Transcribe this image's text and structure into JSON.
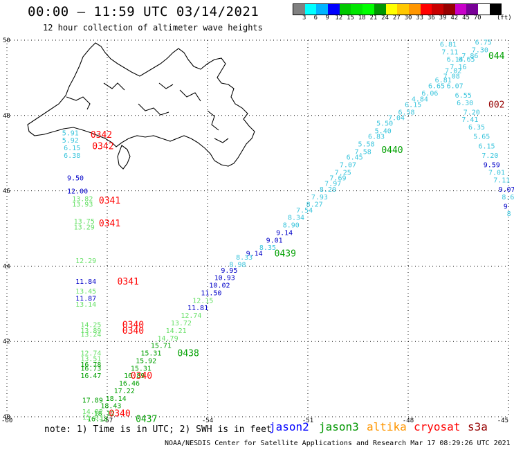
{
  "header": {
    "title": "00:00 – 11:59 UTC 03/14/2021",
    "subtitle": "12 hour collection of altimeter wave heights"
  },
  "legend": {
    "colors": [
      "#808080",
      "#00ffff",
      "#00b4ff",
      "#0000ff",
      "#00c800",
      "#00e600",
      "#00ff00",
      "#009600",
      "#ffff00",
      "#ffc800",
      "#ff9600",
      "#ff0000",
      "#c80000",
      "#960000",
      "#c800c8",
      "#780096",
      "#ffffff",
      "#000000"
    ],
    "labels": [
      "3",
      "6",
      "9",
      "12",
      "15",
      "18",
      "21",
      "24",
      "27",
      "30",
      "33",
      "36",
      "39",
      "42",
      "45",
      "70"
    ],
    "unit": "(ft)"
  },
  "map": {
    "lon_range": [
      -60,
      -45
    ],
    "lat_range": [
      40,
      50
    ],
    "lon_ticks": [
      {
        "value": -60,
        "label": "-60"
      },
      {
        "value": -57,
        "label": "-57"
      },
      {
        "value": -54,
        "label": "-54"
      },
      {
        "value": -51,
        "label": "-51"
      },
      {
        "value": -48,
        "label": "-48"
      },
      {
        "value": -45,
        "label": "-45"
      }
    ],
    "lat_ticks": [
      {
        "value": 40,
        "label": "40"
      },
      {
        "value": 42,
        "label": "42"
      },
      {
        "value": 44,
        "label": "44"
      },
      {
        "value": 46,
        "label": "46"
      },
      {
        "value": 48,
        "label": "48"
      },
      {
        "value": 50,
        "label": "50"
      }
    ],
    "grid": "dotted"
  },
  "colors": {
    "cyan": "#38c4dc",
    "blue": "#0000c8",
    "green": "#00a000",
    "lightgreen": "#66e066",
    "red": "#ff0000",
    "darkred": "#960000",
    "jason2": "#0000ff",
    "jason3": "#009600",
    "altika": "#ff9600",
    "cryosat": "#ff0000",
    "s3a": "#960000"
  },
  "observations": [
    {
      "text": "6.81",
      "lon": -47.05,
      "lat": 49.9,
      "color": "cyan"
    },
    {
      "text": "6.75",
      "lon": -46.0,
      "lat": 49.95,
      "color": "cyan"
    },
    {
      "text": "7.11",
      "lon": -47.0,
      "lat": 49.7,
      "color": "cyan"
    },
    {
      "text": "7.30",
      "lon": -46.1,
      "lat": 49.75,
      "color": "cyan"
    },
    {
      "text": "7.86",
      "lon": -46.4,
      "lat": 49.6,
      "color": "cyan"
    },
    {
      "text": "6.14",
      "lon": -46.85,
      "lat": 49.5,
      "color": "cyan"
    },
    {
      "text": "6.65",
      "lon": -46.5,
      "lat": 49.5,
      "color": "cyan"
    },
    {
      "text": "7.16",
      "lon": -46.75,
      "lat": 49.3,
      "color": "cyan"
    },
    {
      "text": "7.02",
      "lon": -46.9,
      "lat": 49.2,
      "color": "cyan"
    },
    {
      "text": "7.08",
      "lon": -46.95,
      "lat": 49.05,
      "color": "cyan"
    },
    {
      "text": "6.81",
      "lon": -47.2,
      "lat": 48.95,
      "color": "cyan"
    },
    {
      "text": "6.65",
      "lon": -47.4,
      "lat": 48.8,
      "color": "cyan"
    },
    {
      "text": "6.07",
      "lon": -46.85,
      "lat": 48.8,
      "color": "cyan"
    },
    {
      "text": "6.06",
      "lon": -47.6,
      "lat": 48.6,
      "color": "cyan"
    },
    {
      "text": "6.55",
      "lon": -46.6,
      "lat": 48.55,
      "color": "cyan"
    },
    {
      "text": "4.84",
      "lon": -47.9,
      "lat": 48.45,
      "color": "cyan"
    },
    {
      "text": "6.30",
      "lon": -46.55,
      "lat": 48.35,
      "color": "cyan"
    },
    {
      "text": "6.15",
      "lon": -48.1,
      "lat": 48.3,
      "color": "cyan"
    },
    {
      "text": "6.58",
      "lon": -48.3,
      "lat": 48.1,
      "color": "cyan"
    },
    {
      "text": "7.20",
      "lon": -46.35,
      "lat": 48.1,
      "color": "cyan"
    },
    {
      "text": "7.04",
      "lon": -48.6,
      "lat": 47.95,
      "color": "cyan"
    },
    {
      "text": "7.41",
      "lon": -46.4,
      "lat": 47.9,
      "color": "cyan"
    },
    {
      "text": "5.50",
      "lon": -48.95,
      "lat": 47.8,
      "color": "cyan"
    },
    {
      "text": "6.35",
      "lon": -46.2,
      "lat": 47.7,
      "color": "cyan"
    },
    {
      "text": "5.40",
      "lon": -49.0,
      "lat": 47.6,
      "color": "cyan"
    },
    {
      "text": "5.65",
      "lon": -46.05,
      "lat": 47.45,
      "color": "cyan"
    },
    {
      "text": "6.83",
      "lon": -49.2,
      "lat": 47.45,
      "color": "cyan"
    },
    {
      "text": "5.58",
      "lon": -49.5,
      "lat": 47.25,
      "color": "cyan"
    },
    {
      "text": "6.15",
      "lon": -45.9,
      "lat": 47.2,
      "color": "cyan"
    },
    {
      "text": "7.58",
      "lon": -49.6,
      "lat": 47.05,
      "color": "cyan"
    },
    {
      "text": "6.45",
      "lon": -49.85,
      "lat": 46.9,
      "color": "cyan"
    },
    {
      "text": "7.20",
      "lon": -45.8,
      "lat": 46.95,
      "color": "cyan"
    },
    {
      "text": "7.07",
      "lon": -50.05,
      "lat": 46.7,
      "color": "cyan"
    },
    {
      "text": "9.59",
      "lon": -45.75,
      "lat": 46.7,
      "color": "blue"
    },
    {
      "text": "7.25",
      "lon": -50.2,
      "lat": 46.5,
      "color": "cyan"
    },
    {
      "text": "7.01",
      "lon": -45.6,
      "lat": 46.5,
      "color": "cyan"
    },
    {
      "text": "7.69",
      "lon": -50.35,
      "lat": 46.35,
      "color": "cyan"
    },
    {
      "text": "7.11",
      "lon": -45.45,
      "lat": 46.3,
      "color": "cyan"
    },
    {
      "text": "7.97",
      "lon": -50.5,
      "lat": 46.2,
      "color": "cyan"
    },
    {
      "text": "9.07",
      "lon": -45.3,
      "lat": 46.05,
      "color": "blue"
    },
    {
      "text": "8.20",
      "lon": -50.65,
      "lat": 46.05,
      "color": "cyan"
    },
    {
      "text": "7.93",
      "lon": -50.9,
      "lat": 45.85,
      "color": "cyan"
    },
    {
      "text": "8.6",
      "lon": -45.2,
      "lat": 45.85,
      "color": "cyan"
    },
    {
      "text": "8.27",
      "lon": -51.05,
      "lat": 45.65,
      "color": "cyan"
    },
    {
      "text": "9",
      "lon": -45.15,
      "lat": 45.6,
      "color": "blue"
    },
    {
      "text": "7.54",
      "lon": -51.35,
      "lat": 45.5,
      "color": "cyan"
    },
    {
      "text": "8",
      "lon": -45.05,
      "lat": 45.4,
      "color": "cyan"
    },
    {
      "text": "8.34",
      "lon": -51.6,
      "lat": 45.3,
      "color": "cyan"
    },
    {
      "text": "8.90",
      "lon": -51.75,
      "lat": 45.1,
      "color": "cyan"
    },
    {
      "text": "9.14",
      "lon": -51.95,
      "lat": 44.9,
      "color": "blue"
    },
    {
      "text": "9.01",
      "lon": -52.25,
      "lat": 44.7,
      "color": "blue"
    },
    {
      "text": "8.35",
      "lon": -52.45,
      "lat": 44.5,
      "color": "cyan"
    },
    {
      "text": "9.14",
      "lon": -52.85,
      "lat": 44.35,
      "color": "blue"
    },
    {
      "text": "8.33",
      "lon": -53.15,
      "lat": 44.25,
      "color": "cyan"
    },
    {
      "text": "8.98",
      "lon": -53.35,
      "lat": 44.05,
      "color": "cyan"
    },
    {
      "text": "9.95",
      "lon": -53.6,
      "lat": 43.9,
      "color": "blue"
    },
    {
      "text": "10.93",
      "lon": -53.8,
      "lat": 43.7,
      "color": "blue"
    },
    {
      "text": "10.02",
      "lon": -53.95,
      "lat": 43.5,
      "color": "blue"
    },
    {
      "text": "11.50",
      "lon": -54.2,
      "lat": 43.3,
      "color": "blue"
    },
    {
      "text": "12.15",
      "lon": -54.45,
      "lat": 43.1,
      "color": "lightgreen"
    },
    {
      "text": "11.81",
      "lon": -54.6,
      "lat": 42.9,
      "color": "blue"
    },
    {
      "text": "12.74",
      "lon": -54.8,
      "lat": 42.7,
      "color": "lightgreen"
    },
    {
      "text": "13.72",
      "lon": -55.1,
      "lat": 42.5,
      "color": "lightgreen"
    },
    {
      "text": "14.21",
      "lon": -55.25,
      "lat": 42.3,
      "color": "lightgreen"
    },
    {
      "text": "14.79",
      "lon": -55.5,
      "lat": 42.1,
      "color": "lightgreen"
    },
    {
      "text": "15.71",
      "lon": -55.7,
      "lat": 41.9,
      "color": "green"
    },
    {
      "text": "15.31",
      "lon": -56.0,
      "lat": 41.7,
      "color": "green"
    },
    {
      "text": "15.92",
      "lon": -56.15,
      "lat": 41.5,
      "color": "green"
    },
    {
      "text": "15.31",
      "lon": -56.3,
      "lat": 41.3,
      "color": "green"
    },
    {
      "text": "16.89",
      "lon": -56.5,
      "lat": 41.1,
      "color": "green"
    },
    {
      "text": "16.46",
      "lon": -56.65,
      "lat": 40.9,
      "color": "green"
    },
    {
      "text": "17.22",
      "lon": -56.8,
      "lat": 40.7,
      "color": "green"
    },
    {
      "text": "18.14",
      "lon": -57.05,
      "lat": 40.5,
      "color": "green"
    },
    {
      "text": "18.43",
      "lon": -57.2,
      "lat": 40.3,
      "color": "green"
    },
    {
      "text": "18.12",
      "lon": -57.4,
      "lat": 40.1,
      "color": "green"
    },
    {
      "text": "16.18",
      "lon": -57.6,
      "lat": 39.95,
      "color": "green"
    },
    {
      "text": "5.91",
      "lon": -58.35,
      "lat": 47.55,
      "color": "cyan"
    },
    {
      "text": "5.92",
      "lon": -58.35,
      "lat": 47.35,
      "color": "cyan"
    },
    {
      "text": "6.15",
      "lon": -58.3,
      "lat": 47.15,
      "color": "cyan"
    },
    {
      "text": "6.38",
      "lon": -58.3,
      "lat": 46.95,
      "color": "cyan"
    },
    {
      "text": "9.50",
      "lon": -58.2,
      "lat": 46.35,
      "color": "blue"
    },
    {
      "text": "12.00",
      "lon": -58.2,
      "lat": 46.0,
      "color": "blue"
    },
    {
      "text": "13.82",
      "lon": -58.05,
      "lat": 45.8,
      "color": "lightgreen"
    },
    {
      "text": "13.93",
      "lon": -58.05,
      "lat": 45.65,
      "color": "lightgreen"
    },
    {
      "text": "13.75",
      "lon": -58.0,
      "lat": 45.2,
      "color": "lightgreen"
    },
    {
      "text": "13.29",
      "lon": -58.0,
      "lat": 45.05,
      "color": "lightgreen"
    },
    {
      "text": "12.29",
      "lon": -57.95,
      "lat": 44.15,
      "color": "lightgreen"
    },
    {
      "text": "11.84",
      "lon": -57.95,
      "lat": 43.6,
      "color": "blue"
    },
    {
      "text": "13.45",
      "lon": -57.95,
      "lat": 43.35,
      "color": "lightgreen"
    },
    {
      "text": "11.87",
      "lon": -57.95,
      "lat": 43.15,
      "color": "blue"
    },
    {
      "text": "13.14",
      "lon": -57.95,
      "lat": 43.0,
      "color": "lightgreen"
    },
    {
      "text": "14.25",
      "lon": -57.8,
      "lat": 42.45,
      "color": "lightgreen"
    },
    {
      "text": "13.89",
      "lon": -57.8,
      "lat": 42.3,
      "color": "lightgreen"
    },
    {
      "text": "13.24",
      "lon": -57.8,
      "lat": 42.2,
      "color": "lightgreen"
    },
    {
      "text": "12.74",
      "lon": -57.8,
      "lat": 41.7,
      "color": "lightgreen"
    },
    {
      "text": "13.51",
      "lon": -57.8,
      "lat": 41.55,
      "color": "lightgreen"
    },
    {
      "text": "16.78",
      "lon": -57.8,
      "lat": 41.4,
      "color": "green"
    },
    {
      "text": "16.73",
      "lon": -57.8,
      "lat": 41.3,
      "color": "green"
    },
    {
      "text": "16.47",
      "lon": -57.8,
      "lat": 41.1,
      "color": "green"
    },
    {
      "text": "17.89",
      "lon": -57.75,
      "lat": 40.45,
      "color": "green"
    },
    {
      "text": "14.82",
      "lon": -57.75,
      "lat": 40.15,
      "color": "lightgreen"
    },
    {
      "text": "15.03",
      "lon": -57.75,
      "lat": 40.0,
      "color": "lightgreen"
    }
  ],
  "pass_labels": [
    {
      "text": "044",
      "lon": -45.6,
      "lat": 49.6,
      "color": "green"
    },
    {
      "text": "002",
      "lon": -45.6,
      "lat": 48.3,
      "color": "darkred"
    },
    {
      "text": "0440",
      "lon": -48.8,
      "lat": 47.1,
      "color": "green"
    },
    {
      "text": "0439",
      "lon": -52.0,
      "lat": 44.35,
      "color": "green"
    },
    {
      "text": "0438",
      "lon": -54.9,
      "lat": 41.7,
      "color": "green"
    },
    {
      "text": "0437",
      "lon": -56.15,
      "lat": 39.95,
      "color": "green"
    },
    {
      "text": "0342",
      "lon": -57.5,
      "lat": 47.5,
      "color": "red"
    },
    {
      "text": "0342",
      "lon": -57.45,
      "lat": 47.2,
      "color": "red"
    },
    {
      "text": "0341",
      "lon": -57.25,
      "lat": 45.75,
      "color": "red"
    },
    {
      "text": "0341",
      "lon": -57.25,
      "lat": 45.15,
      "color": "red"
    },
    {
      "text": "0341",
      "lon": -56.7,
      "lat": 43.6,
      "color": "red"
    },
    {
      "text": "0340",
      "lon": -56.55,
      "lat": 42.45,
      "color": "red"
    },
    {
      "text": "0340",
      "lon": -56.55,
      "lat": 42.3,
      "color": "red"
    },
    {
      "text": "0340",
      "lon": -56.3,
      "lat": 41.1,
      "color": "red"
    },
    {
      "text": "0340",
      "lon": -56.95,
      "lat": 40.1,
      "color": "red"
    }
  ],
  "footer": {
    "note": "note: 1) Time is in UTC; 2) SWH is in feet",
    "satellites": {
      "jason2": "jason2",
      "jason3": "jason3",
      "altika": "altika",
      "cryosat": "cryosat",
      "s3a": "s3a"
    },
    "credit": "NOAA/NESDIS Center for Satellite Applications and Research   Mar 17 08:29:26 UTC 2021"
  }
}
